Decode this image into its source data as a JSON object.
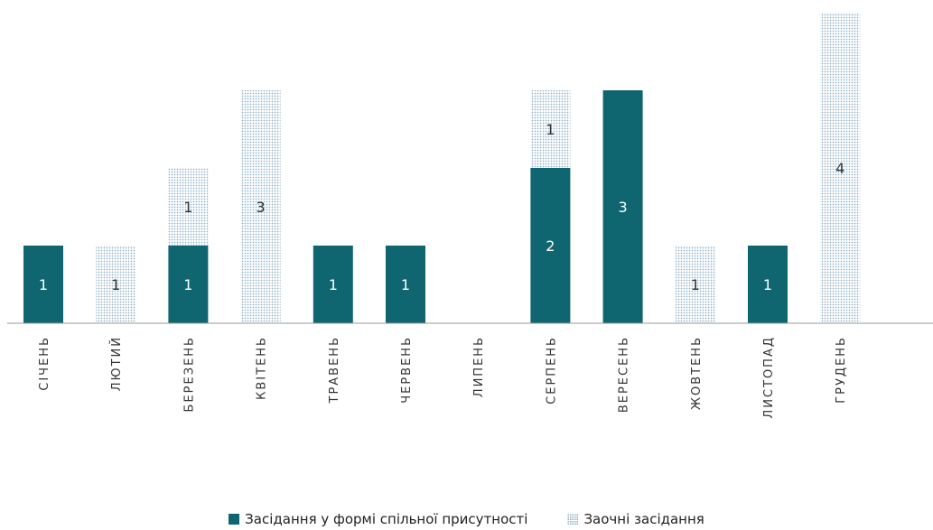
{
  "chart_data": {
    "type": "bar",
    "stacked": true,
    "categories": [
      "СІЧЕНЬ",
      "ЛЮТИЙ",
      "БЕРЕЗЕНЬ",
      "КВІТЕНЬ",
      "ТРАВЕНЬ",
      "ЧЕРВЕНЬ",
      "ЛИПЕНЬ",
      "СЕРПЕНЬ",
      "ВЕРЕСЕНЬ",
      "ЖОВТЕНЬ",
      "ЛИСТОПАД",
      "ГРУДЕНЬ"
    ],
    "series": [
      {
        "name": "Засідання у формі спільної присутності",
        "values": [
          1,
          0,
          1,
          0,
          1,
          1,
          0,
          2,
          3,
          0,
          1,
          0
        ]
      },
      {
        "name": "Заочні засідання",
        "values": [
          0,
          1,
          1,
          3,
          0,
          0,
          0,
          1,
          0,
          1,
          0,
          4
        ]
      }
    ],
    "ylim": [
      0,
      4.2
    ],
    "grid": false,
    "legend": "bottom",
    "colors": {
      "solid": "#0f6670",
      "dotted_dot": "#8fb0c8",
      "axis": "#999999"
    }
  }
}
